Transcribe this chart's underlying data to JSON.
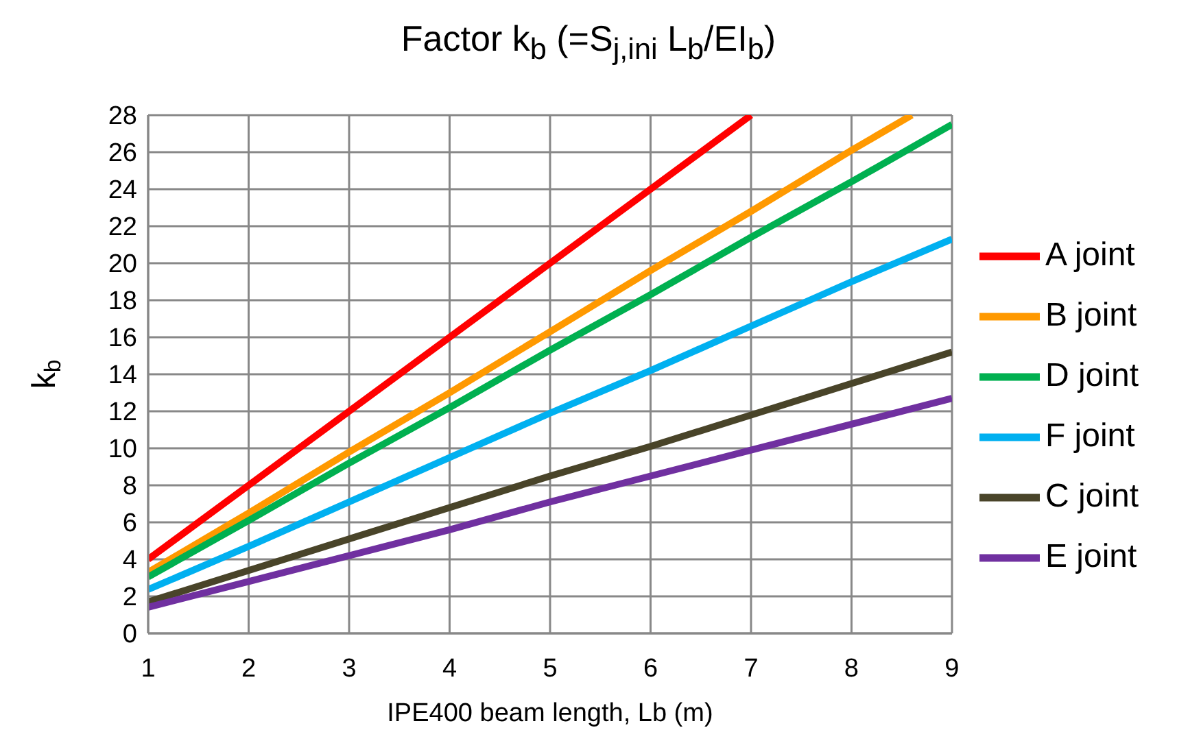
{
  "chart_data": {
    "type": "line",
    "title": "Factor k$_{b}$ (=S$_{j,ini}$ L$_{b}$/EI$_{b}$)",
    "xlabel": "IPE400 beam length, Lb (m)",
    "ylabel": "k$_{b}$",
    "xlim": [
      1,
      9
    ],
    "xticks": [
      1,
      2,
      3,
      4,
      5,
      6,
      7,
      8,
      9
    ],
    "ylim": [
      0,
      28
    ],
    "yticks": [
      0,
      2,
      4,
      6,
      8,
      10,
      12,
      14,
      16,
      18,
      20,
      22,
      24,
      26,
      28
    ],
    "grid": true,
    "legend": "right",
    "marker": "none",
    "line_style": "solid",
    "series": [
      {
        "name": "A joint",
        "color": "#ff0000",
        "x": [
          1,
          2,
          3,
          4,
          5,
          6,
          7
        ],
        "values": [
          4,
          8,
          12,
          16,
          20,
          24,
          28
        ]
      },
      {
        "name": "B joint",
        "color": "#ff9900",
        "x": [
          1,
          2,
          3,
          4,
          5,
          6,
          7,
          8,
          8.6
        ],
        "values": [
          3.3,
          6.5,
          9.8,
          13,
          16.3,
          19.6,
          22.8,
          26.1,
          28
        ]
      },
      {
        "name": "D joint",
        "color": "#00b050",
        "x": [
          1,
          2,
          3,
          4,
          5,
          6,
          7,
          8,
          9
        ],
        "values": [
          3.05,
          6.1,
          9.2,
          12.2,
          15.3,
          18.3,
          21.4,
          24.4,
          27.5
        ]
      },
      {
        "name": "F joint",
        "color": "#00b0f0",
        "x": [
          1,
          2,
          3,
          4,
          5,
          6,
          7,
          8,
          9
        ],
        "values": [
          2.37,
          4.7,
          7.1,
          9.5,
          11.9,
          14.2,
          16.6,
          19,
          21.3
        ]
      },
      {
        "name": "C joint",
        "color": "#494429",
        "x": [
          1,
          2,
          3,
          4,
          5,
          6,
          7,
          8,
          9
        ],
        "values": [
          1.7,
          3.4,
          5.1,
          6.8,
          8.5,
          10.1,
          11.8,
          13.5,
          15.2
        ]
      },
      {
        "name": "E joint",
        "color": "#7030a0",
        "x": [
          1,
          2,
          3,
          4,
          5,
          6,
          7,
          8,
          9
        ],
        "values": [
          1.41,
          2.8,
          4.2,
          5.6,
          7.1,
          8.5,
          9.9,
          11.3,
          12.7
        ]
      }
    ]
  }
}
